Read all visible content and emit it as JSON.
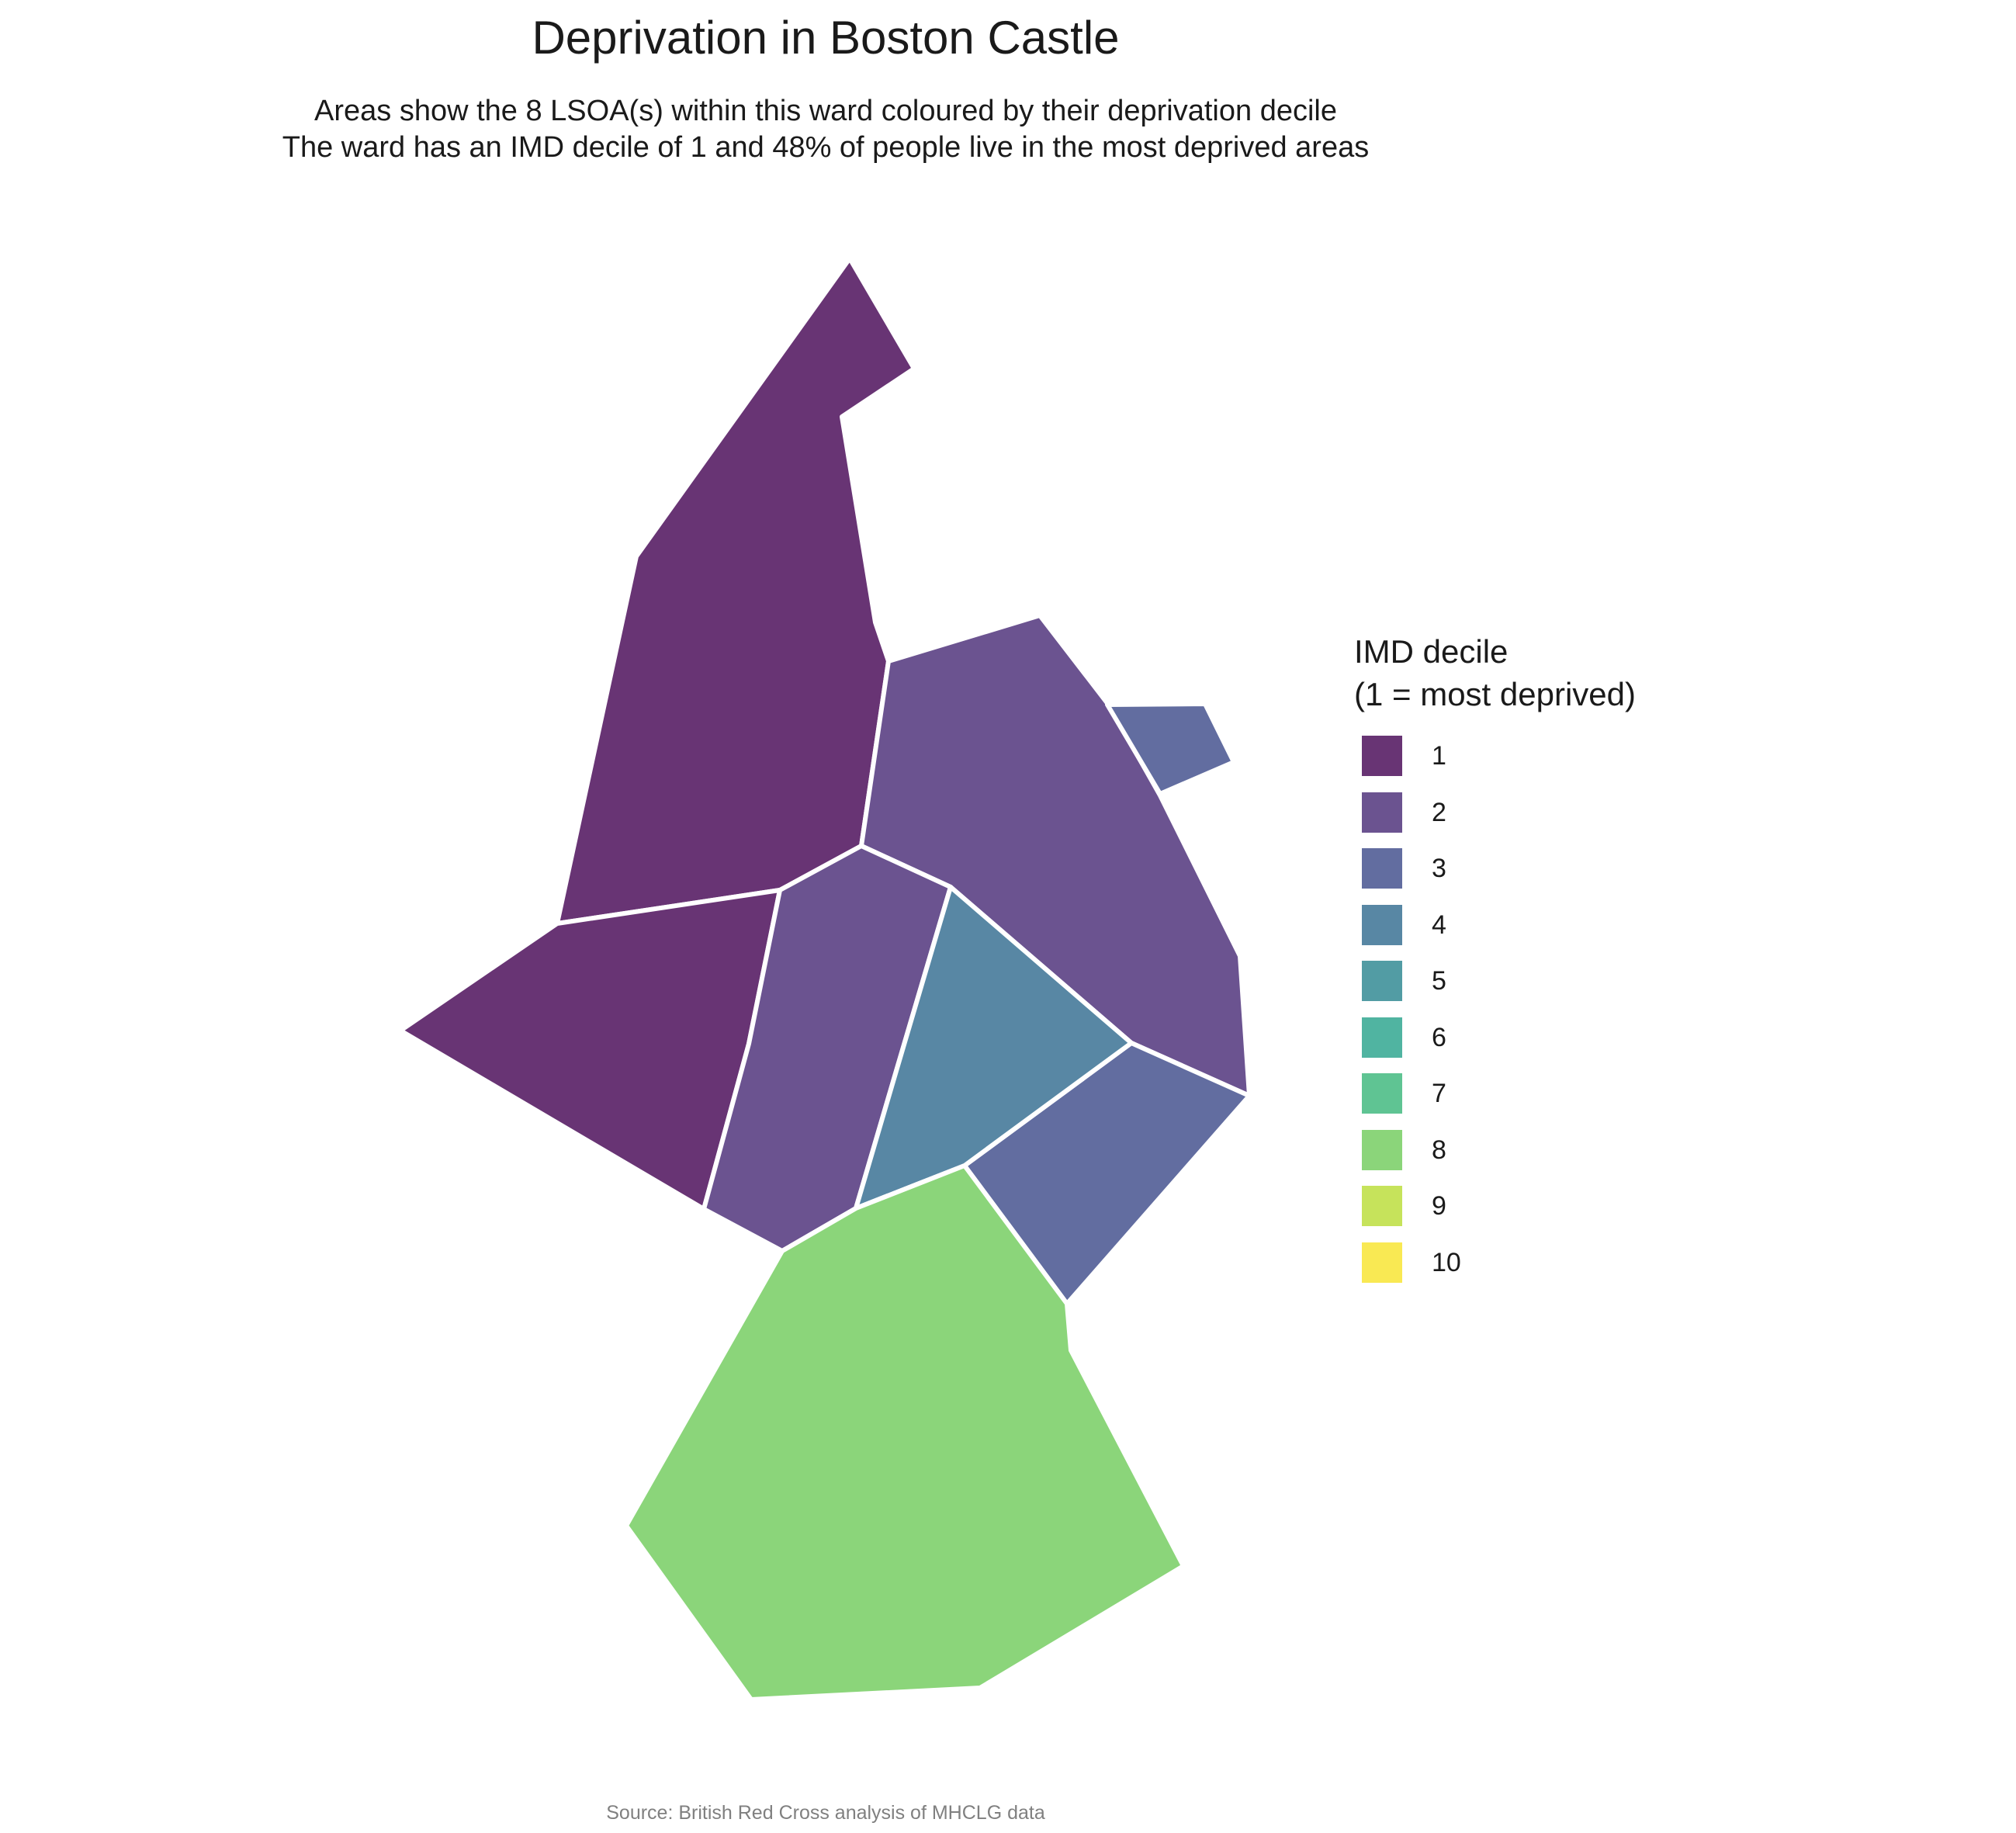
{
  "title": "Deprivation in Boston Castle",
  "subtitle_line1": "Areas show the 8 LSOA(s) within this ward coloured by their deprivation decile",
  "subtitle_line2": "The ward has an IMD decile of 1 and 48% of people live in the most deprived areas",
  "caption": "Source: British Red Cross analysis of MHCLG data",
  "legend": {
    "title_line1": "IMD decile",
    "title_line2": "(1 = most deprived)",
    "items": [
      {
        "label": "1",
        "color": "#683474"
      },
      {
        "label": "2",
        "color": "#6b5390"
      },
      {
        "label": "3",
        "color": "#626da0"
      },
      {
        "label": "4",
        "color": "#5887a4"
      },
      {
        "label": "5",
        "color": "#529ca4"
      },
      {
        "label": "6",
        "color": "#50b4a1"
      },
      {
        "label": "7",
        "color": "#5fc493"
      },
      {
        "label": "8",
        "color": "#8bd57a"
      },
      {
        "label": "9",
        "color": "#c6e35b"
      },
      {
        "label": "10",
        "color": "#f9e953"
      }
    ]
  },
  "map": {
    "border_color": "#ffffff",
    "areas": [
      {
        "name": "north",
        "decile": 1
      },
      {
        "name": "west",
        "decile": 1
      },
      {
        "name": "northeast",
        "decile": 2
      },
      {
        "name": "centre",
        "decile": 2
      },
      {
        "name": "east-small",
        "decile": 3
      },
      {
        "name": "southeast",
        "decile": 3
      },
      {
        "name": "centre-east",
        "decile": 4
      },
      {
        "name": "south",
        "decile": 8
      }
    ]
  }
}
